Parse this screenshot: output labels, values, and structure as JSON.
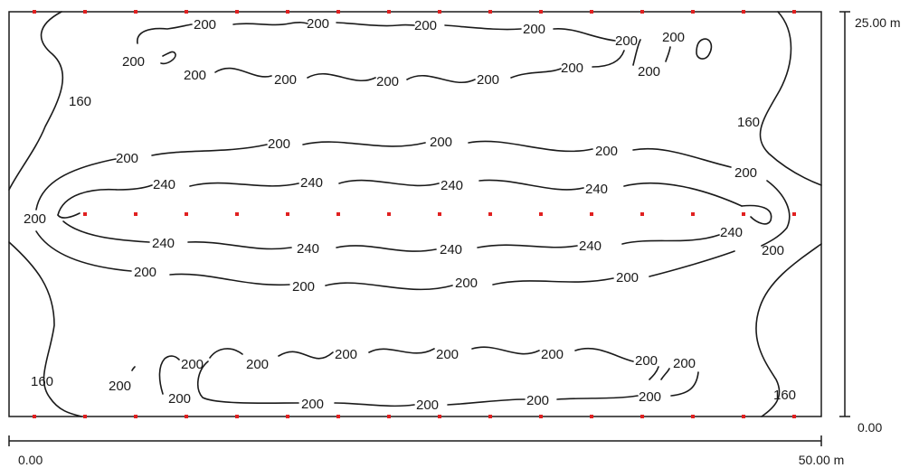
{
  "colors": {
    "luminaire": "#e02020",
    "contour": "#1a1a1a",
    "background": "#ffffff"
  },
  "scale": {
    "x_start": "0.00",
    "x_end": "50.00 m",
    "y_start": "0.00",
    "y_end": "25.00 m"
  },
  "isolines": [
    {
      "value": 160,
      "label": "160"
    },
    {
      "value": 200,
      "label": "200"
    },
    {
      "value": 240,
      "label": "240"
    }
  ],
  "labels": {
    "l160": "160",
    "l200": "200",
    "l240": "240"
  }
}
